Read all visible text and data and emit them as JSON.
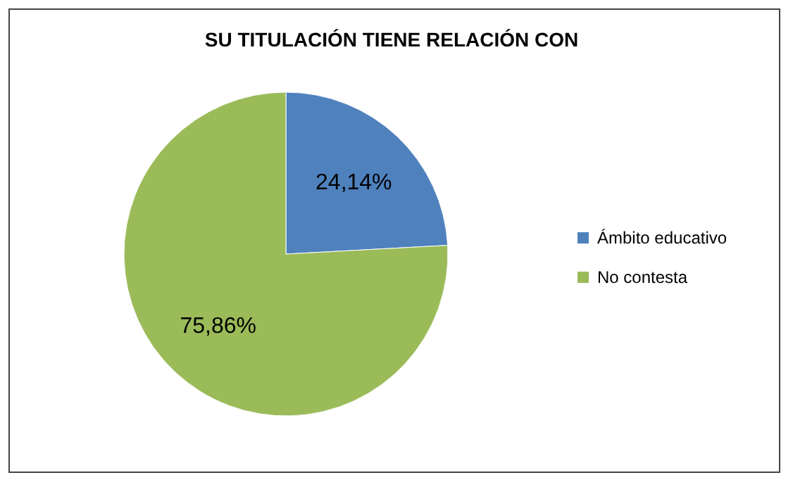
{
  "chart_data": {
    "type": "pie",
    "title": "SU TITULACIÓN TIENE RELACIÓN CON",
    "categories": [
      "Ámbito educativo",
      "No contesta"
    ],
    "values": [
      24.14,
      75.86
    ],
    "colors": [
      "#4f81bd",
      "#9bbb59"
    ],
    "value_labels": [
      "24,14%",
      "75,86%"
    ],
    "legend": "right"
  }
}
